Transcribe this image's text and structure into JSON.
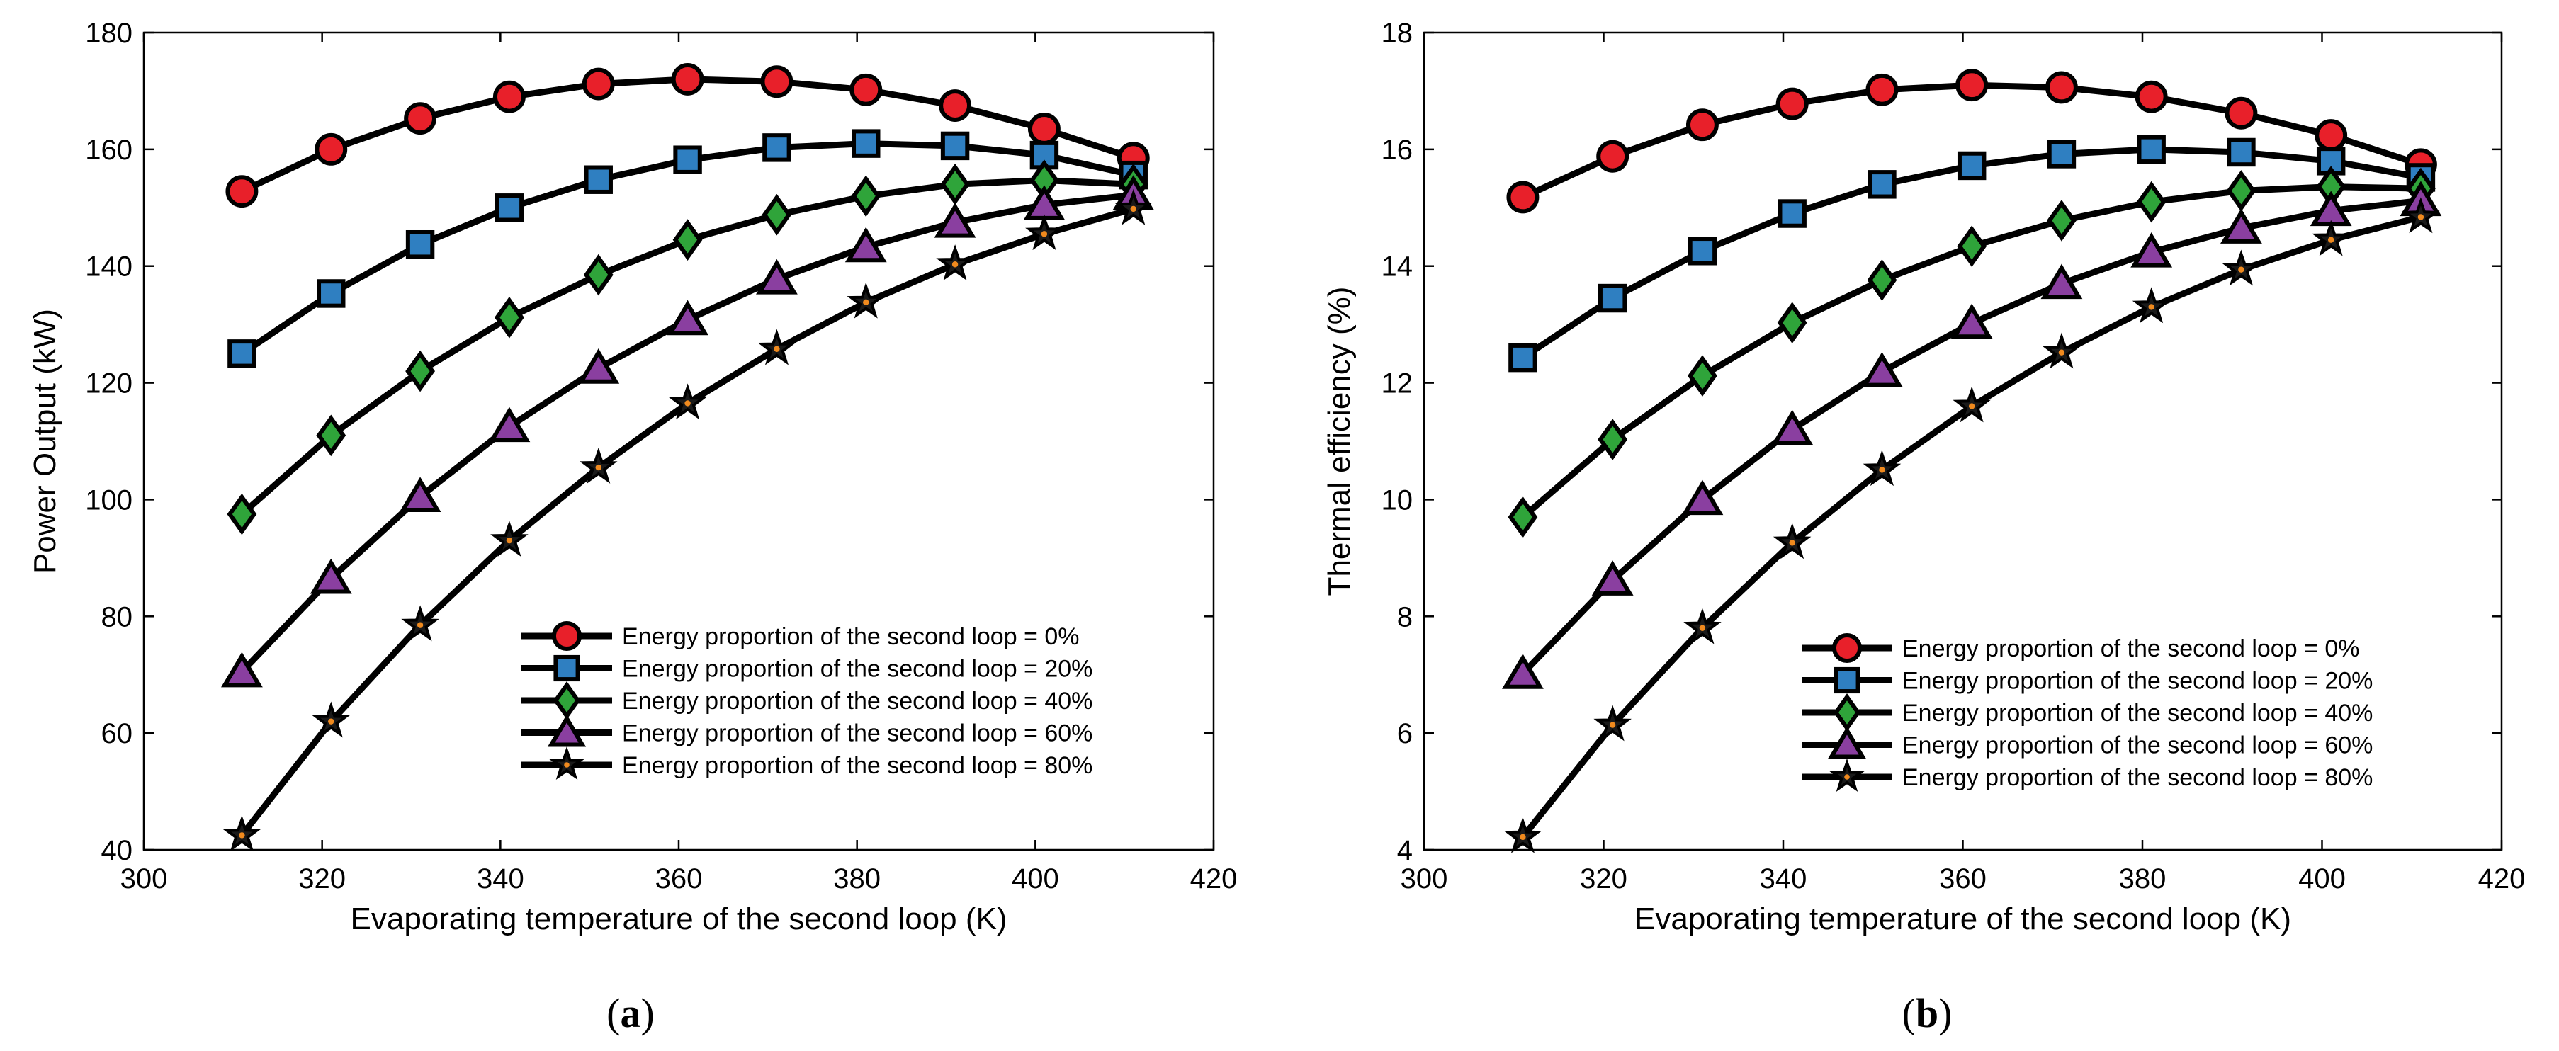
{
  "chart_data": [
    {
      "type": "line",
      "panel_label": "a",
      "xlabel": "Evaporating temperature of the second loop (K)",
      "ylabel": "Power Output (kW)",
      "xlim": [
        300,
        420
      ],
      "ylim": [
        40,
        180
      ],
      "xticks": [
        300,
        320,
        340,
        360,
        380,
        400,
        420
      ],
      "yticks": [
        40,
        60,
        80,
        100,
        120,
        140,
        160,
        180
      ],
      "legend_position": "bottom-right",
      "x": [
        311,
        321,
        331,
        341,
        351,
        361,
        371,
        381,
        391,
        401,
        411
      ],
      "series": [
        {
          "name": "Energy proportion of the second loop = 0%",
          "marker": "circle",
          "color": "#e8202a",
          "values": [
            152.8,
            160.0,
            165.3,
            169.0,
            171.2,
            172.0,
            171.6,
            170.2,
            167.5,
            163.5,
            158.5
          ]
        },
        {
          "name": "Energy proportion of the second loop = 20%",
          "marker": "square",
          "color": "#2f7fc1",
          "values": [
            125.0,
            135.3,
            143.7,
            150.0,
            154.8,
            158.2,
            160.3,
            161.0,
            160.6,
            159.0,
            155.6
          ]
        },
        {
          "name": "Energy proportion of the second loop = 40%",
          "marker": "diamond",
          "color": "#2fa43a",
          "values": [
            97.5,
            111.0,
            122.0,
            131.2,
            138.5,
            144.5,
            148.8,
            152.0,
            154.0,
            154.7,
            154.0
          ]
        },
        {
          "name": "Energy proportion of the second loop = 60%",
          "marker": "triangle",
          "color": "#8a3fa0",
          "values": [
            70.5,
            86.5,
            100.5,
            112.5,
            122.5,
            130.8,
            137.8,
            143.3,
            147.5,
            150.5,
            152.2
          ]
        },
        {
          "name": "Energy proportion of the second loop = 80%",
          "marker": "star",
          "color": "#f08a1e",
          "values": [
            42.5,
            62.0,
            78.5,
            93.0,
            105.5,
            116.5,
            125.8,
            133.8,
            140.3,
            145.5,
            149.8
          ]
        }
      ]
    },
    {
      "type": "line",
      "panel_label": "b",
      "xlabel": "Evaporating temperature of the second loop (K)",
      "ylabel": "Thermal efficiency (%)",
      "xlim": [
        300,
        420
      ],
      "ylim": [
        4,
        18
      ],
      "xticks": [
        300,
        320,
        340,
        360,
        380,
        400,
        420
      ],
      "yticks": [
        4,
        6,
        8,
        10,
        12,
        14,
        16,
        18
      ],
      "legend_position": "bottom-right",
      "x": [
        311,
        321,
        331,
        341,
        351,
        361,
        371,
        381,
        391,
        401,
        411
      ],
      "series": [
        {
          "name": "Energy proportion of the second loop = 0%",
          "marker": "circle",
          "color": "#e8202a",
          "values": [
            15.18,
            15.88,
            16.42,
            16.78,
            17.02,
            17.1,
            17.06,
            16.9,
            16.62,
            16.24,
            15.74
          ]
        },
        {
          "name": "Energy proportion of the second loop = 20%",
          "marker": "square",
          "color": "#2f7fc1",
          "values": [
            12.43,
            13.45,
            14.26,
            14.9,
            15.4,
            15.72,
            15.92,
            16.0,
            15.95,
            15.8,
            15.52
          ]
        },
        {
          "name": "Energy proportion of the second loop = 40%",
          "marker": "diamond",
          "color": "#2fa43a",
          "values": [
            9.7,
            11.03,
            12.12,
            13.03,
            13.76,
            14.34,
            14.78,
            15.1,
            15.29,
            15.36,
            15.33
          ]
        },
        {
          "name": "Energy proportion of the second loop = 60%",
          "marker": "triangle",
          "color": "#8a3fa0",
          "values": [
            7.02,
            8.62,
            10.0,
            11.2,
            12.19,
            13.02,
            13.7,
            14.24,
            14.65,
            14.95,
            15.12
          ]
        },
        {
          "name": "Energy proportion of the second loop = 80%",
          "marker": "star",
          "color": "#f08a1e",
          "values": [
            4.22,
            6.14,
            7.8,
            9.26,
            10.51,
            11.6,
            12.52,
            13.3,
            13.94,
            14.45,
            14.84
          ]
        }
      ]
    }
  ]
}
